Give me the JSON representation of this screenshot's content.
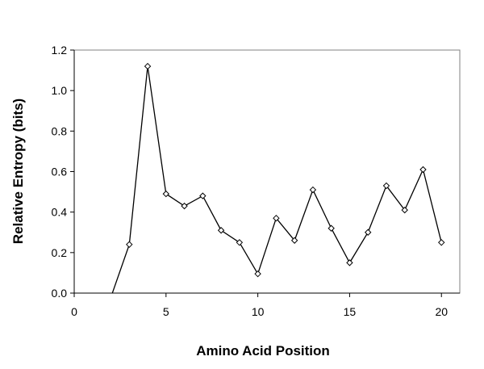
{
  "chart_data": {
    "type": "line",
    "x_label": "Amino Acid Position",
    "y_label": "Relative Entropy (bits)",
    "series": [
      {
        "color": "#000000",
        "x": [
          2,
          3,
          4,
          5,
          6,
          7,
          8,
          9,
          10,
          11,
          12,
          13,
          14,
          15,
          16,
          17,
          18,
          19,
          20
        ],
        "values": [
          -0.02,
          0.24,
          1.12,
          0.49,
          0.43,
          0.48,
          0.31,
          0.25,
          0.095,
          0.37,
          0.26,
          0.51,
          0.32,
          0.15,
          0.3,
          0.53,
          0.41,
          0.61,
          0.25
        ]
      }
    ],
    "xlim": [
      0,
      21
    ],
    "xticks": [
      0,
      5,
      10,
      15,
      20
    ],
    "ylim": [
      0,
      1.2
    ],
    "yticks": [
      {
        "value": 0,
        "label": "0.0"
      },
      {
        "value": 0.2,
        "label": "0.2"
      },
      {
        "value": 0.4,
        "label": "0.4"
      },
      {
        "value": 0.6,
        "label": "0.6"
      },
      {
        "value": 0.8,
        "label": "0.8"
      },
      {
        "value": 1,
        "label": "1.0"
      },
      {
        "value": 1.2,
        "label": "1.2"
      }
    ],
    "grid": false
  }
}
